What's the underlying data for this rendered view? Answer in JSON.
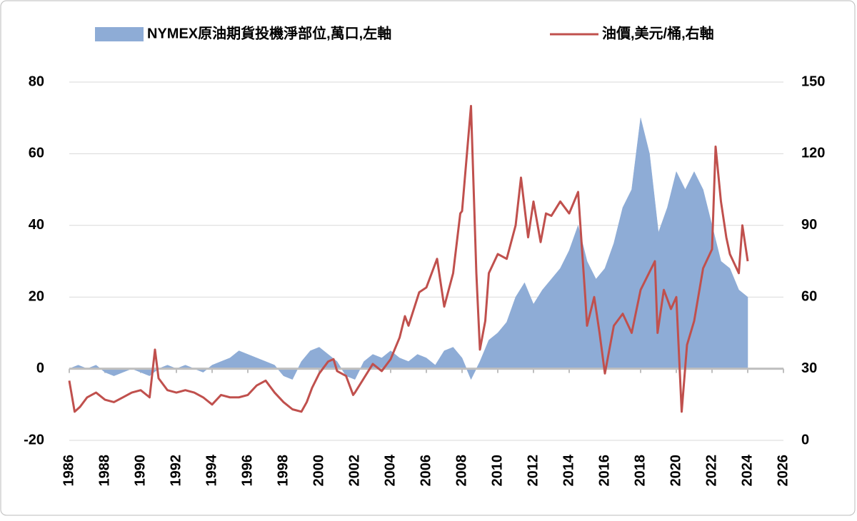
{
  "chart_data": {
    "type": "combo",
    "legend": "top",
    "grid": true,
    "negative_tick_color": "#e00000",
    "xlim": [
      1986,
      2026
    ],
    "xticks": [
      1986,
      1988,
      1990,
      1992,
      1994,
      1996,
      1998,
      2000,
      2002,
      2004,
      2006,
      2008,
      2010,
      2012,
      2014,
      2016,
      2018,
      2020,
      2022,
      2024,
      2026
    ],
    "ylim": [
      -20,
      80
    ],
    "yticks": [
      -20,
      0,
      20,
      40,
      60,
      80
    ],
    "y2lim": [
      0,
      150
    ],
    "y2ticks": [
      0,
      30,
      60,
      90,
      120,
      150
    ],
    "series": [
      {
        "name": "NYMEX原油期貨投機淨部位,萬口,左軸",
        "type": "area",
        "color": "#8eacd6",
        "x": [
          1986,
          1986.5,
          1987,
          1987.5,
          1988,
          1988.5,
          1989,
          1989.5,
          1990,
          1990.5,
          1991,
          1991.5,
          1992,
          1992.5,
          1993,
          1993.5,
          1994,
          1994.5,
          1995,
          1995.5,
          1996,
          1996.5,
          1997,
          1997.5,
          1998,
          1998.5,
          1999,
          1999.5,
          2000,
          2000.5,
          2001,
          2001.5,
          2002,
          2002.5,
          2003,
          2003.5,
          2004,
          2004.5,
          2005,
          2005.5,
          2006,
          2006.5,
          2007,
          2007.5,
          2008,
          2008.5,
          2009,
          2009.5,
          2010,
          2010.5,
          2011,
          2011.5,
          2012,
          2012.5,
          2013,
          2013.5,
          2014,
          2014.5,
          2015,
          2015.5,
          2016,
          2016.5,
          2017,
          2017.5,
          2018,
          2018.5,
          2019,
          2019.5,
          2020,
          2020.5,
          2021,
          2021.5,
          2022,
          2022.5,
          2023,
          2023.5,
          2024
        ],
        "values": [
          0,
          1,
          0,
          1,
          -1,
          -2,
          -1,
          0,
          -1,
          -2,
          0,
          1,
          0,
          1,
          0,
          -1,
          1,
          2,
          3,
          5,
          4,
          3,
          2,
          1,
          -2,
          -3,
          2,
          5,
          6,
          4,
          2,
          -2,
          -3,
          2,
          4,
          3,
          5,
          3,
          2,
          4,
          3,
          1,
          5,
          6,
          3,
          -3,
          2,
          8,
          10,
          13,
          20,
          24,
          18,
          22,
          25,
          28,
          33,
          40,
          30,
          25,
          28,
          35,
          45,
          50,
          70,
          60,
          38,
          45,
          55,
          50,
          55,
          50,
          40,
          30,
          28,
          22,
          20
        ]
      },
      {
        "name": "油價,美元/桶,右軸",
        "type": "line",
        "axis": "y2",
        "color": "#c0504d",
        "x": [
          1986,
          1986.3,
          1986.6,
          1987,
          1987.5,
          1988,
          1988.5,
          1989,
          1989.5,
          1990,
          1990.5,
          1990.8,
          1991,
          1991.5,
          1992,
          1992.5,
          1993,
          1993.5,
          1994,
          1994.5,
          1995,
          1995.5,
          1996,
          1996.5,
          1997,
          1997.5,
          1998,
          1998.5,
          1999,
          1999.3,
          1999.6,
          2000,
          2000.5,
          2000.8,
          2001,
          2001.5,
          2001.9,
          2002,
          2002.5,
          2003,
          2003.5,
          2004,
          2004.5,
          2004.8,
          2005,
          2005.6,
          2006,
          2006.6,
          2007,
          2007.5,
          2007.9,
          2008,
          2008.5,
          2008.8,
          2009,
          2009.3,
          2009.5,
          2010,
          2010.5,
          2011,
          2011.3,
          2011.7,
          2012,
          2012.4,
          2012.7,
          2013,
          2013.5,
          2014,
          2014.5,
          2014.9,
          2015,
          2015.4,
          2015.7,
          2016,
          2016.5,
          2017,
          2017.5,
          2018,
          2018.8,
          2018.95,
          2019.3,
          2019.7,
          2020,
          2020.3,
          2020.6,
          2021,
          2021.5,
          2022,
          2022.2,
          2022.5,
          2022.8,
          2023,
          2023.5,
          2023.7,
          2024
        ],
        "values": [
          25,
          12,
          14,
          18,
          20,
          17,
          16,
          18,
          20,
          21,
          18,
          38,
          26,
          21,
          20,
          21,
          20,
          18,
          15,
          19,
          18,
          18,
          19,
          23,
          25,
          20,
          16,
          13,
          12,
          16,
          22,
          28,
          33,
          34,
          29,
          27,
          19,
          20,
          26,
          32,
          29,
          34,
          43,
          52,
          48,
          62,
          64,
          76,
          56,
          70,
          95,
          96,
          140,
          70,
          38,
          50,
          70,
          78,
          76,
          90,
          110,
          85,
          100,
          83,
          95,
          94,
          100,
          95,
          104,
          60,
          48,
          60,
          45,
          28,
          48,
          53,
          45,
          63,
          75,
          45,
          63,
          55,
          60,
          12,
          40,
          50,
          72,
          80,
          123,
          100,
          85,
          78,
          70,
          90,
          75
        ]
      }
    ]
  }
}
